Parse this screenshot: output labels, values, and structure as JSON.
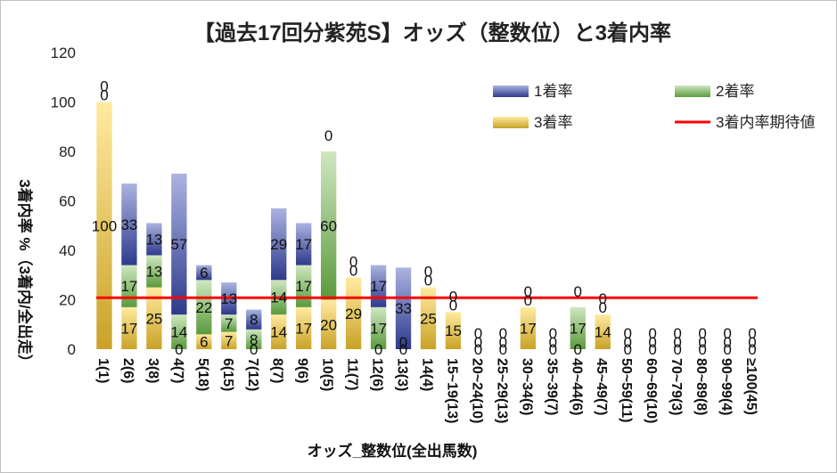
{
  "chart_data": {
    "type": "bar",
    "title": "【過去17回分紫苑S】オッズ（整数位）と3着内率",
    "xlabel": "オッズ_整数位(全出馬数)",
    "ylabel": "3着内率 %（3着内/全出走）",
    "ylim": [
      0,
      120
    ],
    "yticks": [
      "0",
      "20",
      "40",
      "60",
      "80",
      "100",
      "120"
    ],
    "categories": [
      "1(1)",
      "2(6)",
      "3(8)",
      "4(7)",
      "5(18)",
      "6(15)",
      "7(12)",
      "8(7)",
      "9(6)",
      "10(5)",
      "11(7)",
      "12(6)",
      "13(3)",
      "14(4)",
      "15~19(13)",
      "20~24(10)",
      "25~29(13)",
      "30~34(6)",
      "35~39(7)",
      "40~44(6)",
      "45~49(7)",
      "50~59(11)",
      "60~69(10)",
      "70~79(3)",
      "80~89(8)",
      "90~99(4)",
      "≥100(45)"
    ],
    "series": [
      {
        "name": "3着率",
        "color": "#c9a227",
        "values": [
          100,
          17,
          25,
          0,
          6,
          7,
          0,
          14,
          17,
          20,
          29,
          0,
          0,
          25,
          15,
          0,
          0,
          17,
          0,
          0,
          14,
          0,
          0,
          0,
          0,
          0,
          0
        ]
      },
      {
        "name": "2着率",
        "color": "#5a9a3c",
        "values": [
          0,
          17,
          13,
          14,
          22,
          7,
          8,
          14,
          17,
          60,
          0,
          17,
          0,
          0,
          0,
          0,
          0,
          0,
          0,
          17,
          0,
          0,
          0,
          0,
          0,
          0,
          0
        ]
      },
      {
        "name": "1着率",
        "color": "#2e3a8c",
        "values": [
          0,
          33,
          13,
          57,
          6,
          13,
          8,
          29,
          17,
          0,
          0,
          17,
          33,
          0,
          0,
          0,
          0,
          0,
          0,
          0,
          0,
          0,
          0,
          0,
          0,
          0,
          0
        ]
      }
    ],
    "reference_line": {
      "name": "3着内率期待値",
      "color": "#ff0000",
      "value": 20.8
    },
    "legend_position": "top-right",
    "grid": false
  }
}
